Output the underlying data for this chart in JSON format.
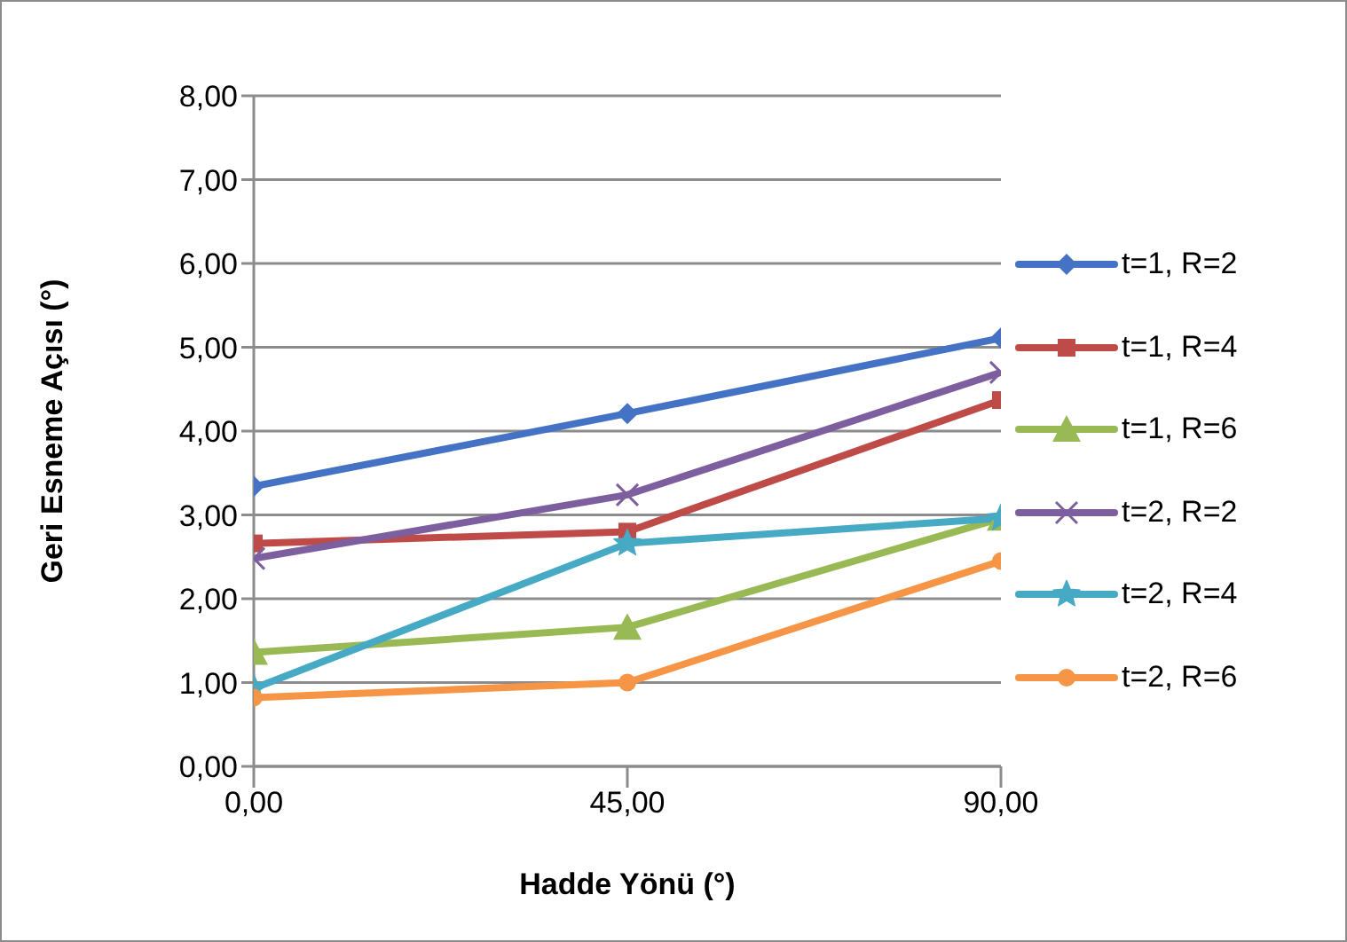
{
  "chart_data": {
    "type": "line",
    "xlabel": "Hadde Yönü (°)",
    "ylabel": "Geri Esneme Açısı (°)",
    "x": [
      0,
      45,
      90
    ],
    "xlim": [
      0,
      90
    ],
    "xticks": [
      {
        "value": 0,
        "label": "0,00"
      },
      {
        "value": 45,
        "label": "45,00"
      },
      {
        "value": 90,
        "label": "90,00"
      }
    ],
    "ylim": [
      0,
      8
    ],
    "yticks": [
      {
        "value": 0,
        "label": "0,00"
      },
      {
        "value": 1,
        "label": "1,00"
      },
      {
        "value": 2,
        "label": "2,00"
      },
      {
        "value": 3,
        "label": "3,00"
      },
      {
        "value": 4,
        "label": "4,00"
      },
      {
        "value": 5,
        "label": "5,00"
      },
      {
        "value": 6,
        "label": "6,00"
      },
      {
        "value": 7,
        "label": "7,00"
      },
      {
        "value": 8,
        "label": "8,00"
      }
    ],
    "grid": "y",
    "legend": "right",
    "series": [
      {
        "name": "t=1, R=2",
        "color": "#4472c4",
        "marker": "diamond",
        "values": [
          3.34,
          4.21,
          5.11
        ]
      },
      {
        "name": "t=1, R=4",
        "color": "#be4b48",
        "marker": "square",
        "values": [
          2.66,
          2.8,
          4.37
        ]
      },
      {
        "name": "t=1, R=6",
        "color": "#98b954",
        "marker": "triangle",
        "values": [
          1.36,
          1.66,
          2.96
        ]
      },
      {
        "name": "t=2, R=2",
        "color": "#7d5fa0",
        "marker": "cross",
        "values": [
          2.48,
          3.24,
          4.7
        ]
      },
      {
        "name": "t=2, R=4",
        "color": "#46aac5",
        "marker": "star",
        "values": [
          0.93,
          2.66,
          2.96
        ]
      },
      {
        "name": "t=2, R=6",
        "color": "#f69545",
        "marker": "circle",
        "values": [
          0.82,
          1.0,
          2.45
        ]
      }
    ]
  }
}
